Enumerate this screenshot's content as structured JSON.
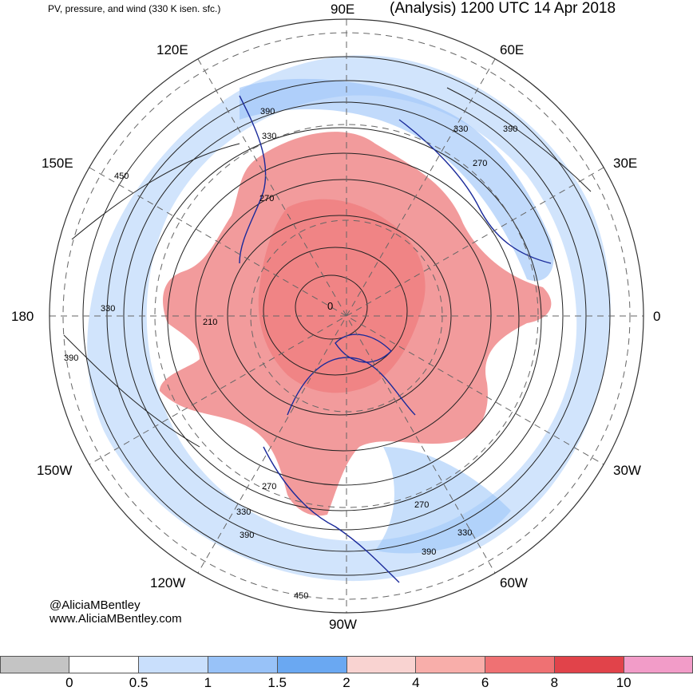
{
  "header": {
    "subtitle": "PV, pressure, and wind (330 K isen. sfc.)",
    "analysis": "(Analysis) 1200 UTC 14 Apr 2018"
  },
  "longitude_labels": {
    "lon_90e": "90E",
    "lon_120e": "120E",
    "lon_60e": "60E",
    "lon_150e": "150E",
    "lon_30e": "30E",
    "lon_180": "180",
    "lon_0": "0",
    "lon_150w": "150W",
    "lon_30w": "30W",
    "lon_120w": "120W",
    "lon_60w": "60W",
    "lon_90w": "90W"
  },
  "contour_labels": [
    {
      "text": "390"
    },
    {
      "text": "330"
    },
    {
      "text": "450"
    },
    {
      "text": "270"
    },
    {
      "text": "330"
    },
    {
      "text": "390"
    },
    {
      "text": "270"
    },
    {
      "text": "0"
    },
    {
      "text": "210"
    },
    {
      "text": "330"
    },
    {
      "text": "390"
    },
    {
      "text": "270"
    },
    {
      "text": "330"
    },
    {
      "text": "390"
    },
    {
      "text": "270"
    },
    {
      "text": "330"
    },
    {
      "text": "390"
    },
    {
      "text": "450"
    }
  ],
  "credits": {
    "handle": "@AliciaMBentley",
    "website": "www.AliciaMBentley.com"
  },
  "colorbar": {
    "colors": [
      "#c4c4c4",
      "#ffffff",
      "#c9dffc",
      "#98c2f8",
      "#6aa8f2",
      "#f9d3d1",
      "#f8aeaa",
      "#ef7173",
      "#e1434a",
      "#f29cc8"
    ],
    "ticks": [
      "0",
      "0.5",
      "1",
      "1.5",
      "2",
      "4",
      "6",
      "8",
      "10"
    ]
  }
}
